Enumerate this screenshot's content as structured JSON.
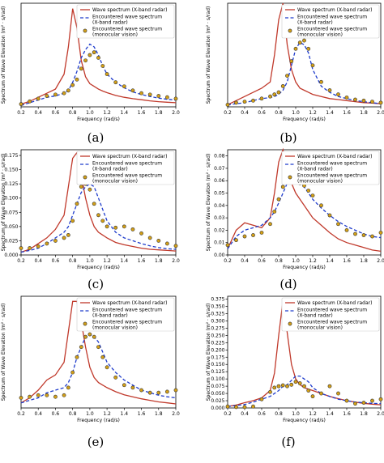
{
  "figure": {
    "panel_labels": [
      "(a)",
      "(b)",
      "(c)",
      "(d)",
      "(e)",
      "(f)"
    ]
  },
  "legend": {
    "wave": "Wave spectrum (X-band radar)",
    "enc1": "Encountered wave spectrum",
    "enc2": "(X-band radar)",
    "mon1": "Encountered wave spectrum",
    "mon2": "(monocular vision)"
  },
  "axis": {
    "xlabel": "Frequency (rad/s)",
    "ylabel": "Spectrum of Wave Elevation (m² · s/rad)"
  },
  "colors": {
    "wave": "#c0392b",
    "encountered": "#1f3ccc",
    "monocular_fill": "#d4a017",
    "monocular_edge": "#333333"
  },
  "chart_data": [
    {
      "type": "line",
      "panel": "(a)",
      "xlim": [
        0.2,
        2.0
      ],
      "ylim": [
        0,
        0.38
      ],
      "xticks": [
        "0.2",
        "0.4",
        "0.6",
        "0.8",
        "1.0",
        "1.2",
        "1.4",
        "1.6",
        "1.8",
        "2.0"
      ],
      "yticks": [],
      "x": [
        0.2,
        0.3,
        0.4,
        0.5,
        0.6,
        0.7,
        0.75,
        0.8,
        0.85,
        0.9,
        0.95,
        1.0,
        1.05,
        1.1,
        1.15,
        1.2,
        1.3,
        1.4,
        1.5,
        1.6,
        1.7,
        1.8,
        1.9,
        2.0
      ],
      "series": [
        {
          "name": "Wave spectrum (X-band radar)",
          "style": "solid",
          "values": [
            0.01,
            0.02,
            0.035,
            0.05,
            0.065,
            0.12,
            0.22,
            0.36,
            0.29,
            0.17,
            0.11,
            0.085,
            0.075,
            0.065,
            0.058,
            0.052,
            0.042,
            0.035,
            0.03,
            0.026,
            0.022,
            0.019,
            0.017,
            0.015
          ]
        },
        {
          "name": "Encountered wave spectrum (X-band radar)",
          "style": "dashed",
          "values": [
            0.005,
            0.015,
            0.025,
            0.035,
            0.04,
            0.05,
            0.06,
            0.09,
            0.13,
            0.18,
            0.21,
            0.23,
            0.22,
            0.19,
            0.15,
            0.12,
            0.09,
            0.07,
            0.055,
            0.045,
            0.038,
            0.032,
            0.028,
            0.025
          ]
        },
        {
          "name": "Encountered wave spectrum (monocular vision)",
          "style": "markers",
          "values": [
            0.01,
            0.02,
            0.03,
            0.04,
            0.045,
            0.05,
            0.06,
            0.08,
            0.1,
            0.14,
            0.17,
            0.19,
            0.2,
            0.18,
            0.15,
            0.12,
            0.09,
            0.075,
            0.06,
            0.05,
            0.045,
            0.04,
            0.035,
            0.03
          ]
        }
      ]
    },
    {
      "type": "line",
      "panel": "(b)",
      "xlim": [
        0.2,
        2.0
      ],
      "ylim": [
        0,
        0.5
      ],
      "xticks": [
        "0.2",
        "0.4",
        "0.6",
        "0.8",
        "1.0",
        "1.2",
        "1.4",
        "1.6",
        "1.8",
        "2.0"
      ],
      "yticks": [],
      "x": [
        0.2,
        0.3,
        0.4,
        0.5,
        0.6,
        0.7,
        0.75,
        0.8,
        0.85,
        0.9,
        0.95,
        1.0,
        1.05,
        1.1,
        1.15,
        1.2,
        1.3,
        1.4,
        1.5,
        1.6,
        1.7,
        1.8,
        1.9,
        2.0
      ],
      "series": [
        {
          "name": "Wave spectrum (X-band radar)",
          "style": "solid",
          "values": [
            0.01,
            0.03,
            0.05,
            0.07,
            0.09,
            0.12,
            0.25,
            0.42,
            0.5,
            0.3,
            0.18,
            0.12,
            0.09,
            0.08,
            0.07,
            0.06,
            0.05,
            0.04,
            0.035,
            0.03,
            0.025,
            0.02,
            0.018,
            0.015
          ]
        },
        {
          "name": "Encountered wave spectrum (X-band radar)",
          "style": "dashed",
          "values": [
            0.01,
            0.015,
            0.02,
            0.03,
            0.04,
            0.045,
            0.05,
            0.06,
            0.08,
            0.12,
            0.2,
            0.28,
            0.31,
            0.3,
            0.26,
            0.18,
            0.1,
            0.07,
            0.05,
            0.04,
            0.03,
            0.025,
            0.02,
            0.015
          ]
        },
        {
          "name": "Encountered wave spectrum (monocular vision)",
          "style": "markers",
          "values": [
            0.01,
            0.02,
            0.025,
            0.03,
            0.04,
            0.05,
            0.06,
            0.07,
            0.1,
            0.15,
            0.22,
            0.28,
            0.31,
            0.32,
            0.28,
            0.2,
            0.12,
            0.08,
            0.06,
            0.045,
            0.035,
            0.03,
            0.025,
            0.02
          ]
        }
      ]
    },
    {
      "type": "line",
      "panel": "(c)",
      "xlim": [
        0.2,
        2.0
      ],
      "ylim": [
        0,
        0.185
      ],
      "xticks": [
        "0.2",
        "0.4",
        "0.6",
        "0.8",
        "1.0",
        "1.2",
        "1.4",
        "1.6",
        "1.8",
        "2.0"
      ],
      "yticks": [
        "0.000",
        "0.025",
        "0.050",
        "0.075",
        "0.100",
        "0.125",
        "0.150",
        "0.175"
      ],
      "x": [
        0.2,
        0.3,
        0.4,
        0.5,
        0.6,
        0.7,
        0.75,
        0.8,
        0.85,
        0.9,
        0.95,
        1.0,
        1.05,
        1.1,
        1.15,
        1.2,
        1.3,
        1.4,
        1.5,
        1.6,
        1.7,
        1.8,
        1.9,
        2.0
      ],
      "series": [
        {
          "name": "Wave spectrum (X-band radar)",
          "style": "solid",
          "values": [
            0.005,
            0.01,
            0.02,
            0.03,
            0.045,
            0.07,
            0.12,
            0.17,
            0.18,
            0.14,
            0.1,
            0.07,
            0.05,
            0.04,
            0.035,
            0.03,
            0.022,
            0.018,
            0.015,
            0.012,
            0.01,
            0.009,
            0.008,
            0.007
          ]
        },
        {
          "name": "Encountered wave spectrum (X-band radar)",
          "style": "dashed",
          "values": [
            0.005,
            0.008,
            0.012,
            0.02,
            0.03,
            0.04,
            0.05,
            0.07,
            0.09,
            0.11,
            0.12,
            0.125,
            0.12,
            0.1,
            0.08,
            0.06,
            0.04,
            0.03,
            0.025,
            0.02,
            0.016,
            0.013,
            0.011,
            0.01
          ]
        },
        {
          "name": "Encountered wave spectrum (monocular vision)",
          "style": "markers",
          "values": [
            0.012,
            0.012,
            0.015,
            0.02,
            0.025,
            0.03,
            0.035,
            0.06,
            0.09,
            0.12,
            0.125,
            0.115,
            0.09,
            0.07,
            0.06,
            0.05,
            0.048,
            0.05,
            0.045,
            0.038,
            0.03,
            0.025,
            0.02,
            0.016
          ]
        }
      ]
    },
    {
      "type": "line",
      "panel": "(d)",
      "xlim": [
        0.2,
        2.0
      ],
      "ylim": [
        0,
        0.085
      ],
      "xticks": [
        "0.2",
        "0.4",
        "0.6",
        "0.8",
        "1.0",
        "1.2",
        "1.4",
        "1.6",
        "1.8",
        "2.0"
      ],
      "yticks": [
        "0.00",
        "0.01",
        "0.02",
        "0.03",
        "0.04",
        "0.05",
        "0.06",
        "0.07",
        "0.08"
      ],
      "x": [
        0.2,
        0.3,
        0.4,
        0.5,
        0.6,
        0.7,
        0.75,
        0.8,
        0.85,
        0.9,
        0.95,
        1.0,
        1.05,
        1.1,
        1.15,
        1.2,
        1.3,
        1.4,
        1.5,
        1.6,
        1.7,
        1.8,
        1.9,
        2.0
      ],
      "series": [
        {
          "name": "Wave spectrum (X-band radar)",
          "style": "solid",
          "values": [
            0.005,
            0.02,
            0.026,
            0.024,
            0.022,
            0.03,
            0.05,
            0.075,
            0.085,
            0.07,
            0.058,
            0.05,
            0.045,
            0.04,
            0.035,
            0.03,
            0.024,
            0.018,
            0.013,
            0.01,
            0.008,
            0.006,
            0.004,
            0.003
          ]
        },
        {
          "name": "Encountered wave spectrum (X-band radar)",
          "style": "dashed",
          "values": [
            0.005,
            0.015,
            0.02,
            0.022,
            0.024,
            0.03,
            0.035,
            0.042,
            0.05,
            0.058,
            0.062,
            0.063,
            0.06,
            0.055,
            0.05,
            0.045,
            0.038,
            0.032,
            0.027,
            0.023,
            0.02,
            0.017,
            0.015,
            0.014
          ]
        },
        {
          "name": "Encountered wave spectrum (monocular vision)",
          "style": "markers",
          "values": [
            0.008,
            0.012,
            0.015,
            0.016,
            0.018,
            0.025,
            0.035,
            0.045,
            0.055,
            0.062,
            0.063,
            0.06,
            0.058,
            0.056,
            0.052,
            0.048,
            0.04,
            0.032,
            0.025,
            0.02,
            0.017,
            0.016,
            0.015,
            0.018
          ]
        }
      ]
    },
    {
      "type": "line",
      "panel": "(e)",
      "xlim": [
        0.2,
        2.0
      ],
      "ylim": [
        0,
        0.22
      ],
      "xticks": [
        "0.2",
        "0.4",
        "0.6",
        "0.8",
        "1.0",
        "1.2",
        "1.4",
        "1.6",
        "1.8",
        "2.0"
      ],
      "yticks": [],
      "x": [
        0.2,
        0.3,
        0.4,
        0.5,
        0.6,
        0.7,
        0.75,
        0.8,
        0.85,
        0.9,
        0.95,
        1.0,
        1.05,
        1.1,
        1.15,
        1.2,
        1.3,
        1.4,
        1.5,
        1.6,
        1.7,
        1.8,
        1.9,
        2.0
      ],
      "series": [
        {
          "name": "Wave spectrum (X-band radar)",
          "style": "solid",
          "values": [
            0.01,
            0.02,
            0.035,
            0.055,
            0.065,
            0.09,
            0.15,
            0.21,
            0.21,
            0.17,
            0.12,
            0.08,
            0.06,
            0.05,
            0.045,
            0.04,
            0.032,
            0.026,
            0.022,
            0.018,
            0.015,
            0.012,
            0.01,
            0.008
          ]
        },
        {
          "name": "Encountered wave spectrum (X-band radar)",
          "style": "dashed",
          "values": [
            0.01,
            0.015,
            0.02,
            0.03,
            0.035,
            0.04,
            0.05,
            0.07,
            0.1,
            0.12,
            0.14,
            0.145,
            0.14,
            0.13,
            0.11,
            0.09,
            0.07,
            0.055,
            0.045,
            0.035,
            0.03,
            0.025,
            0.022,
            0.02
          ]
        },
        {
          "name": "Encountered wave spectrum (monocular vision)",
          "style": "markers",
          "values": [
            0.02,
            0.022,
            0.025,
            0.025,
            0.022,
            0.025,
            0.04,
            0.07,
            0.1,
            0.12,
            0.14,
            0.145,
            0.14,
            0.12,
            0.1,
            0.08,
            0.06,
            0.045,
            0.04,
            0.035,
            0.03,
            0.03,
            0.032,
            0.035
          ]
        }
      ]
    },
    {
      "type": "line",
      "panel": "(f)",
      "xlim": [
        0.2,
        2.0
      ],
      "ylim": [
        0,
        0.385
      ],
      "xticks": [
        "0.2",
        "0.4",
        "0.6",
        "0.8",
        "1.0",
        "1.2",
        "1.4",
        "1.6",
        "1.8",
        "2.0"
      ],
      "yticks": [
        "0.000",
        "0.025",
        "0.050",
        "0.075",
        "0.100",
        "0.125",
        "0.150",
        "0.175",
        "0.200",
        "0.225",
        "0.250",
        "0.275",
        "0.300",
        "0.325",
        "0.350",
        "0.375"
      ],
      "x": [
        0.2,
        0.3,
        0.4,
        0.5,
        0.6,
        0.7,
        0.75,
        0.8,
        0.85,
        0.9,
        0.95,
        1.0,
        1.05,
        1.1,
        1.15,
        1.2,
        1.3,
        1.4,
        1.5,
        1.6,
        1.7,
        1.8,
        1.9,
        2.0
      ],
      "series": [
        {
          "name": "Wave spectrum (X-band radar)",
          "style": "solid",
          "values": [
            0.005,
            0.01,
            0.018,
            0.025,
            0.035,
            0.06,
            0.12,
            0.25,
            0.37,
            0.26,
            0.15,
            0.1,
            0.08,
            0.07,
            0.065,
            0.06,
            0.05,
            0.04,
            0.032,
            0.025,
            0.02,
            0.016,
            0.013,
            0.011
          ]
        },
        {
          "name": "Encountered wave spectrum (X-band radar)",
          "style": "dashed",
          "values": [
            0.005,
            0.008,
            0.012,
            0.02,
            0.03,
            0.04,
            0.05,
            0.06,
            0.075,
            0.08,
            0.095,
            0.11,
            0.11,
            0.1,
            0.09,
            0.07,
            0.05,
            0.04,
            0.03,
            0.025,
            0.02,
            0.018,
            0.016,
            0.015
          ]
        },
        {
          "name": "Encountered wave spectrum (monocular vision)",
          "style": "markers",
          "values": [
            0.005,
            0.003,
            0.003,
            0.005,
            0.03,
            0.055,
            0.07,
            0.075,
            0.078,
            0.075,
            0.08,
            0.09,
            0.085,
            0.075,
            0.06,
            0.04,
            0.05,
            0.075,
            0.05,
            0.025,
            0.015,
            0.018,
            0.025,
            0.03
          ]
        }
      ]
    }
  ]
}
